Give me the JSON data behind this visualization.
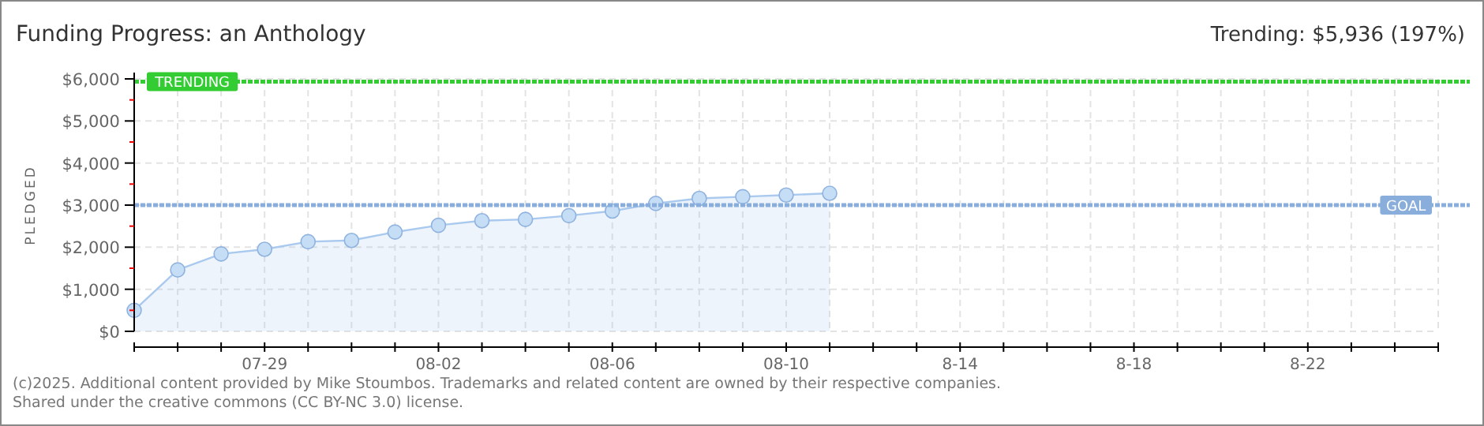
{
  "chart_data": {
    "type": "area",
    "title": "Funding Progress: an Anthology",
    "ylabel": "PLEDGED",
    "annotations": [
      "Trending: $5,936 (197%)",
      "(c)2025. Additional content provided by Mike Stoumbos. Trademarks and related content are owned by their respective companies.",
      "Shared under the creative commons (CC BY-NC 3.0) license."
    ],
    "x": [
      "--07-26",
      "--07-27",
      "--07-28",
      "--07-29",
      "--07-30",
      "--07-31",
      "--08-01",
      "--08-02",
      "--08-03",
      "--08-04",
      "--08-05",
      "--08-06",
      "--08-07",
      "--08-08",
      "--08-09",
      "--08-10",
      "--08-11"
    ],
    "series": [
      {
        "color": "#a9c9ee",
        "values": [
          500,
          1460,
          1840,
          1950,
          2130,
          2160,
          2360,
          2520,
          2630,
          2660,
          2750,
          2860,
          3040,
          3160,
          3200,
          3240,
          3280
        ]
      }
    ],
    "marker": "circle",
    "grid": true,
    "ylim": [
      0,
      6000
    ],
    "yticks": [
      {
        "value": 0,
        "label": "$0"
      },
      {
        "value": 500,
        "label": null
      },
      {
        "value": 1000,
        "label": "$1,000"
      },
      {
        "value": 1500,
        "label": null
      },
      {
        "value": 2000,
        "label": "$2,000"
      },
      {
        "value": 2500,
        "label": null
      },
      {
        "value": 3000,
        "label": "$3,000"
      },
      {
        "value": 3500,
        "label": null
      },
      {
        "value": 4000,
        "label": "$4,000"
      },
      {
        "value": 4500,
        "label": null
      },
      {
        "value": 5000,
        "label": "$5,000"
      },
      {
        "value": 5500,
        "label": null
      },
      {
        "value": 6000,
        "label": "$6,000"
      }
    ],
    "xlim": [
      "--07-26",
      "--08-25"
    ],
    "xticks": [
      {
        "value": "--07-26",
        "label": null
      },
      {
        "value": "--07-27",
        "label": null
      },
      {
        "value": "--07-28",
        "label": null
      },
      {
        "value": "--07-29",
        "label": "07-29"
      },
      {
        "value": "--07-30",
        "label": null
      },
      {
        "value": "--07-31",
        "label": null
      },
      {
        "value": "--08-01",
        "label": null
      },
      {
        "value": "--08-02",
        "label": "08-02"
      },
      {
        "value": "--08-03",
        "label": null
      },
      {
        "value": "--08-04",
        "label": null
      },
      {
        "value": "--08-05",
        "label": null
      },
      {
        "value": "--08-06",
        "label": "08-06"
      },
      {
        "value": "--08-07",
        "label": null
      },
      {
        "value": "--08-08",
        "label": null
      },
      {
        "value": "--08-09",
        "label": null
      },
      {
        "value": "--08-10",
        "label": "08-10"
      },
      {
        "value": "--08-11",
        "label": null
      },
      {
        "value": "--08-12",
        "label": null
      },
      {
        "value": "--08-13",
        "label": null
      },
      {
        "value": "--08-14",
        "label": "8-14"
      },
      {
        "value": "--08-15",
        "label": null
      },
      {
        "value": "--08-16",
        "label": null
      },
      {
        "value": "--08-17",
        "label": null
      },
      {
        "value": "--08-18",
        "label": "8-18"
      },
      {
        "value": "--08-19",
        "label": null
      },
      {
        "value": "--08-20",
        "label": null
      },
      {
        "value": "--08-21",
        "label": null
      },
      {
        "value": "--08-22",
        "label": "8-22"
      },
      {
        "value": "--08-23",
        "label": null
      },
      {
        "value": "--08-24",
        "label": null
      },
      {
        "value": "--08-25",
        "label": null
      }
    ],
    "ref_lines": [
      {
        "axis": "y",
        "value": 5936,
        "label": "TRENDING",
        "color": "#33cc33",
        "line_style": "dotted"
      },
      {
        "axis": "y",
        "value": 3000,
        "label": "GOAL",
        "color": "#8aaedc",
        "line_style": "dotted"
      }
    ]
  }
}
